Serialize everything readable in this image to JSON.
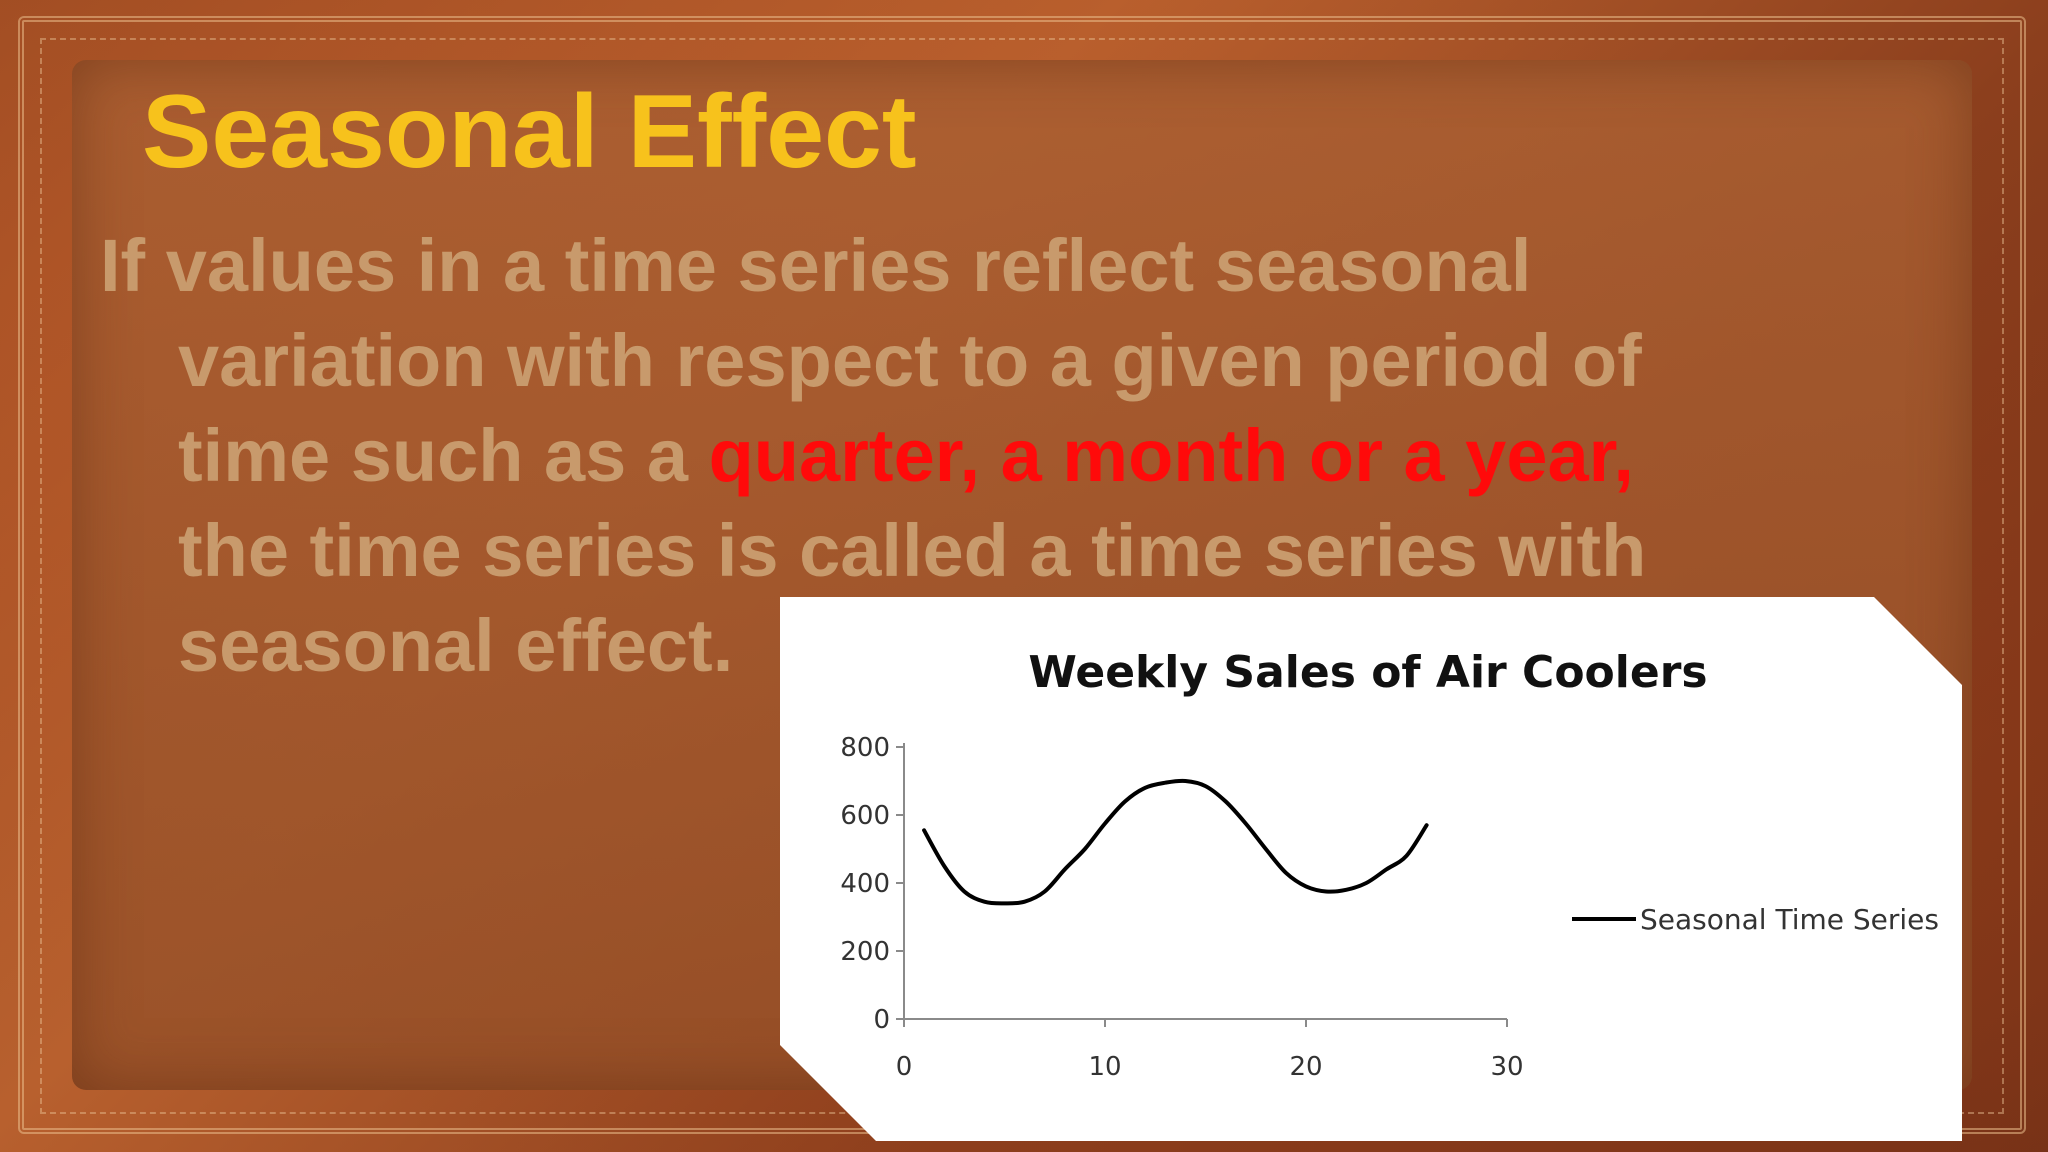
{
  "slide": {
    "title": "Seasonal Effect",
    "body_lines": [
      {
        "text": "If values in a time series reflect seasonal",
        "highlight": ""
      },
      {
        "text": "variation with respect to a given period of",
        "highlight": ""
      },
      {
        "text": "time such as a ",
        "highlight": "quarter, a month or a year,"
      },
      {
        "text": "the time series is called a time series with",
        "highlight": ""
      },
      {
        "text": "seasonal effect.",
        "highlight": ""
      }
    ],
    "colors": {
      "title": "#f7c21c",
      "body": "#c89a6c",
      "highlight": "#ff0a0a"
    }
  },
  "chart_data": {
    "type": "line",
    "title": "Weekly Sales of Air Coolers",
    "xlabel": "",
    "ylabel": "",
    "xlim": [
      0,
      30
    ],
    "ylim": [
      0,
      800
    ],
    "x_ticks": [
      "0",
      "10",
      "20",
      "30"
    ],
    "y_ticks": [
      "0",
      "200",
      "400",
      "600",
      "800"
    ],
    "grid": false,
    "legend_position": "right",
    "series": [
      {
        "name": "Seasonal Time Series",
        "color": "#000000",
        "x": [
          1,
          2,
          3,
          4,
          5,
          6,
          7,
          8,
          9,
          10,
          11,
          12,
          13,
          14,
          15,
          16,
          17,
          18,
          19,
          20,
          21,
          22,
          23,
          24,
          25,
          26
        ],
        "y": [
          555,
          450,
          375,
          345,
          340,
          345,
          375,
          440,
          500,
          575,
          640,
          680,
          695,
          700,
          685,
          640,
          575,
          500,
          430,
          390,
          375,
          380,
          400,
          440,
          480,
          570
        ]
      }
    ]
  }
}
